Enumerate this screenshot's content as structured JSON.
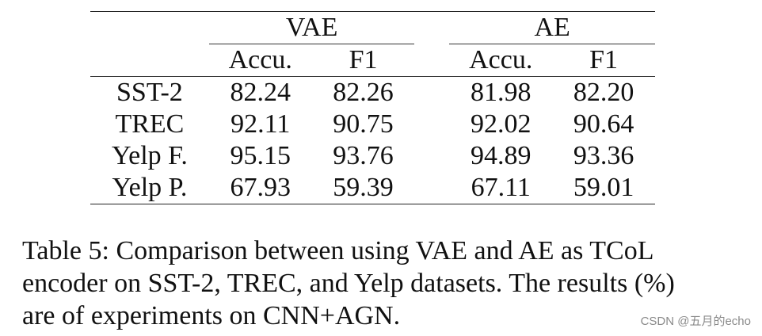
{
  "table": {
    "groups": [
      {
        "name": "VAE",
        "columns": [
          "Accu.",
          "F1"
        ]
      },
      {
        "name": "AE",
        "columns": [
          "Accu.",
          "F1"
        ]
      }
    ],
    "rows": [
      {
        "label": "SST-2",
        "values": [
          "82.24",
          "82.26",
          "81.98",
          "82.20"
        ]
      },
      {
        "label": "TREC",
        "values": [
          "92.11",
          "90.75",
          "92.02",
          "90.64"
        ]
      },
      {
        "label": "Yelp F.",
        "values": [
          "95.15",
          "93.76",
          "94.89",
          "93.36"
        ]
      },
      {
        "label": "Yelp P.",
        "values": [
          "67.93",
          "59.39",
          "67.11",
          "59.01"
        ]
      }
    ]
  },
  "caption": {
    "line1": "Table 5: Comparison between using VAE and AE as TCoL",
    "line2": "encoder on SST-2, TREC, and Yelp datasets. The results (%)",
    "line3": "are of experiments on CNN+AGN."
  },
  "watermark": "CSDN @五月的echo"
}
